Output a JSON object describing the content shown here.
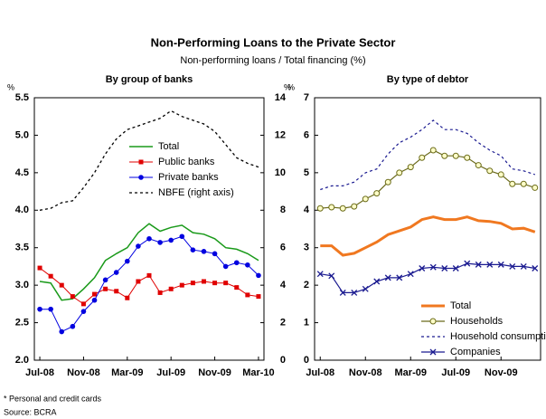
{
  "title": "Non-Performing Loans to the Private Sector",
  "subtitle": "Non-performing loans / Total financing (%)",
  "footnote": "* Personal and credit cards",
  "source": "Source: BCRA",
  "chart_data": [
    {
      "type": "line",
      "title": "By group of banks",
      "ylabel": "%",
      "y2label": "%",
      "categories": [
        "Jul-08",
        null,
        null,
        null,
        "Nov-08",
        null,
        null,
        null,
        "Mar-09",
        null,
        null,
        null,
        "Jul-09",
        null,
        null,
        null,
        "Nov-09",
        null,
        null,
        null,
        "Mar-10"
      ],
      "ylim": [
        2.0,
        5.5
      ],
      "yticks": [
        {
          "value": 2,
          "label": "2.0"
        },
        2.5,
        {
          "value": 3,
          "label": "3.0"
        },
        3.5,
        {
          "value": 4,
          "label": "4.0"
        },
        4.5,
        {
          "value": 5,
          "label": "5.0"
        },
        5.5
      ],
      "y2lim": [
        0,
        14
      ],
      "y2ticks": [
        0,
        2,
        4,
        6,
        8,
        10,
        12,
        14
      ],
      "legend": "center right",
      "series": [
        {
          "name": "Total",
          "color": "#1a9a1a",
          "width": 1.5,
          "values": [
            3.05,
            3.03,
            2.8,
            2.82,
            2.95,
            3.1,
            3.33,
            3.42,
            3.5,
            3.7,
            3.82,
            3.72,
            3.77,
            3.8,
            3.7,
            3.68,
            3.62,
            3.5,
            3.48,
            3.42,
            3.33
          ]
        },
        {
          "name": "Public banks",
          "color": "#e00000",
          "width": 1,
          "marker": "square",
          "values": [
            3.23,
            3.12,
            3.0,
            2.85,
            2.75,
            2.88,
            2.95,
            2.92,
            2.83,
            3.05,
            3.13,
            2.9,
            2.95,
            3.0,
            3.03,
            3.05,
            3.03,
            3.03,
            2.97,
            2.87,
            2.85
          ]
        },
        {
          "name": "Private banks",
          "color": "#0000e0",
          "width": 1,
          "marker": "circle",
          "values": [
            2.68,
            2.68,
            2.38,
            2.45,
            2.65,
            2.8,
            3.07,
            3.17,
            3.32,
            3.52,
            3.62,
            3.57,
            3.6,
            3.65,
            3.47,
            3.45,
            3.42,
            3.25,
            3.3,
            3.27,
            3.13
          ]
        },
        {
          "name": "NBFE (right axis)",
          "color": "#000000",
          "width": 1.3,
          "dash": true,
          "axis": "y2",
          "values": [
            8.0,
            8.1,
            8.4,
            8.5,
            9.2,
            10.0,
            11.0,
            11.8,
            12.3,
            12.5,
            12.7,
            12.9,
            13.3,
            13.0,
            12.8,
            12.6,
            12.2,
            11.5,
            10.8,
            10.5,
            10.3
          ]
        }
      ]
    },
    {
      "type": "line",
      "title": "By type of debtor",
      "ylabel": "%",
      "categories": [
        "Jul-08",
        null,
        null,
        null,
        "Nov-08",
        null,
        null,
        null,
        "Mar-09",
        null,
        null,
        null,
        "Jul-09",
        null,
        null,
        null,
        "Nov-09",
        null,
        null,
        null
      ],
      "ylim": [
        0,
        7
      ],
      "yticks": [
        0,
        1,
        2,
        3,
        4,
        5,
        6,
        7
      ],
      "legend": "lower right",
      "series": [
        {
          "name": "Total",
          "color": "#f07820",
          "width": 3,
          "values": [
            3.05,
            3.05,
            2.8,
            2.85,
            3.0,
            3.15,
            3.35,
            3.45,
            3.55,
            3.75,
            3.82,
            3.75,
            3.75,
            3.82,
            3.72,
            3.7,
            3.65,
            3.5,
            3.52,
            3.42
          ]
        },
        {
          "name": "Households",
          "color": "#6b6b1a",
          "width": 1.2,
          "marker": "open-circle",
          "values": [
            4.05,
            4.08,
            4.05,
            4.1,
            4.3,
            4.45,
            4.75,
            5.0,
            5.15,
            5.4,
            5.6,
            5.45,
            5.45,
            5.4,
            5.2,
            5.05,
            4.95,
            4.7,
            4.7,
            4.6
          ]
        },
        {
          "name": "Household consumption*",
          "color": "#1a1a90",
          "width": 1.2,
          "dash": true,
          "values": [
            4.55,
            4.65,
            4.65,
            4.75,
            5.0,
            5.1,
            5.5,
            5.8,
            5.95,
            6.15,
            6.4,
            6.15,
            6.15,
            6.05,
            5.8,
            5.6,
            5.45,
            5.1,
            5.05,
            4.95
          ]
        },
        {
          "name": "Companies",
          "color": "#1a1a90",
          "width": 1.2,
          "marker": "x",
          "values": [
            2.3,
            2.25,
            1.8,
            1.8,
            1.9,
            2.1,
            2.2,
            2.2,
            2.3,
            2.45,
            2.48,
            2.45,
            2.45,
            2.58,
            2.55,
            2.55,
            2.55,
            2.5,
            2.5,
            2.45
          ]
        }
      ]
    }
  ]
}
